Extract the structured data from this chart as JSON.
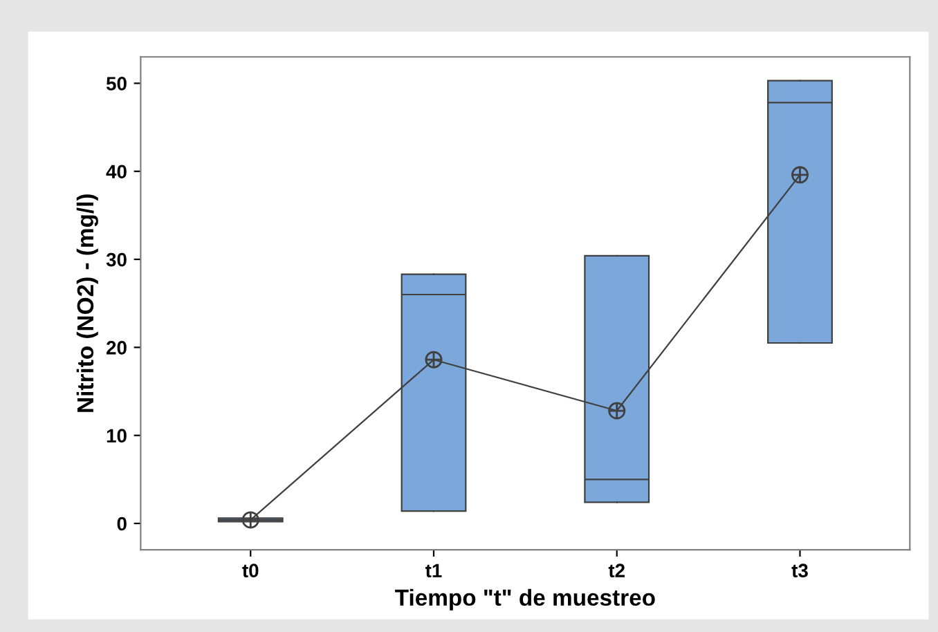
{
  "chart_data": {
    "type": "box",
    "xlabel": "Tiempo \"t\" de muestreo",
    "ylabel": "Nitrito (NO2) - (mg/l)",
    "categories": [
      "t0",
      "t1",
      "t2",
      "t3"
    ],
    "boxes": [
      {
        "low": 0.2,
        "q1": 0.2,
        "median": 0.4,
        "q3": 0.6,
        "high": 0.6,
        "mean": 0.4
      },
      {
        "low": 1.4,
        "q1": 1.4,
        "median": 26.0,
        "q3": 28.3,
        "high": 28.3,
        "mean": 18.6
      },
      {
        "low": 2.4,
        "q1": 2.4,
        "median": 5.0,
        "q3": 30.4,
        "high": 30.4,
        "mean": 12.8
      },
      {
        "low": 20.5,
        "q1": 20.5,
        "median": 47.8,
        "q3": 50.3,
        "high": 50.3,
        "mean": 39.6
      }
    ],
    "series": [
      {
        "type": "line",
        "color": "#404040",
        "values": [
          0.4,
          18.6,
          12.8,
          39.6
        ]
      }
    ],
    "color": "#7ba7db",
    "ylim": [
      -3,
      53
    ],
    "yticks": [
      0,
      10,
      20,
      30,
      40,
      50
    ],
    "grid": false
  }
}
